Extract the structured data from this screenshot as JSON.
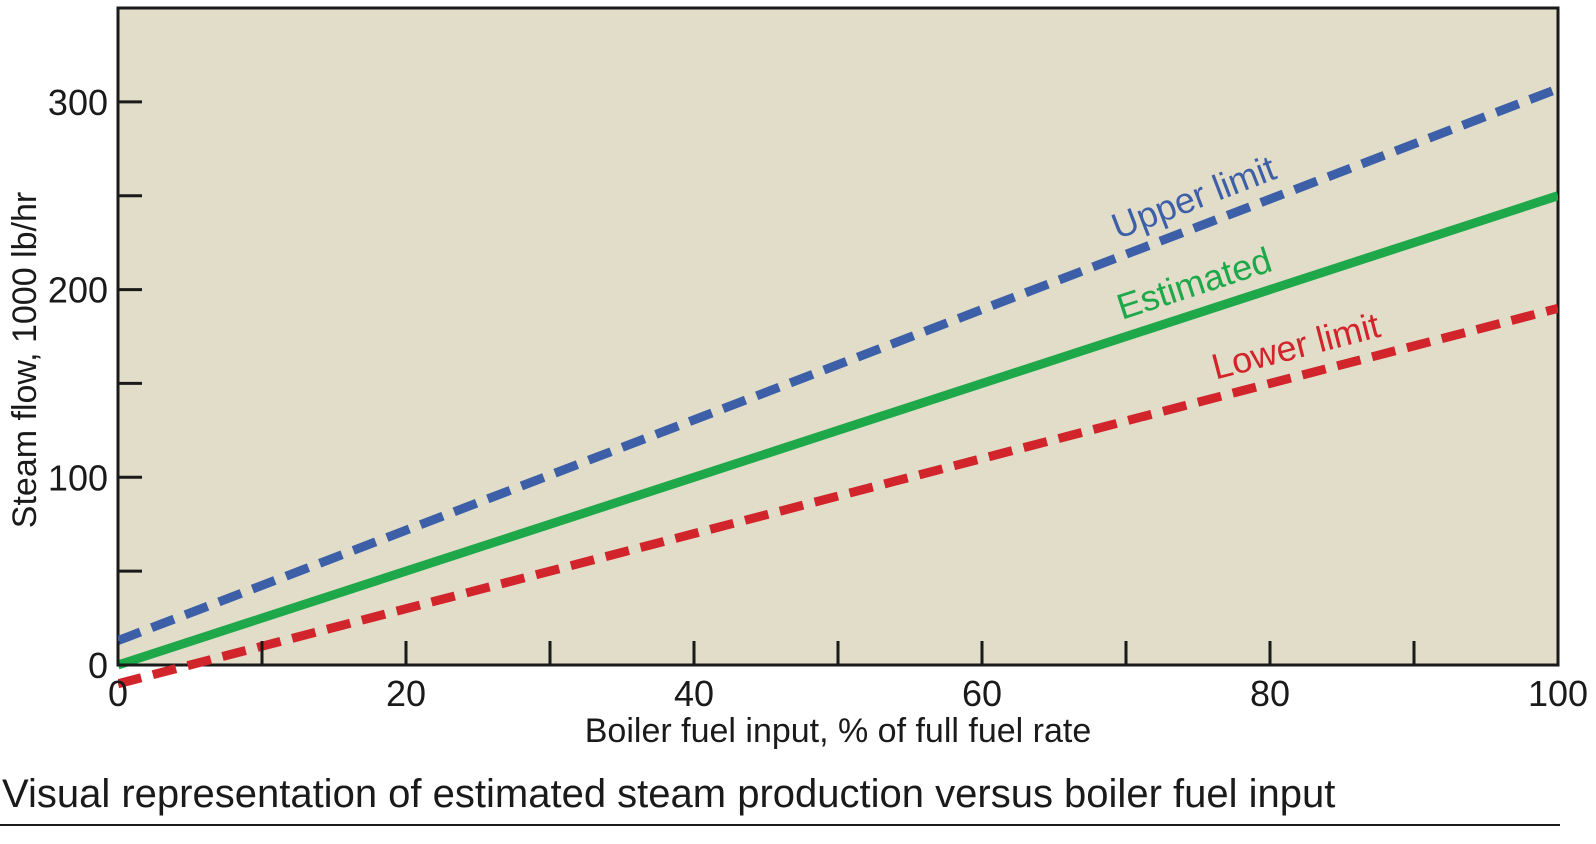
{
  "chart_data": {
    "type": "line",
    "xlabel": "Boiler fuel input, % of full fuel rate",
    "ylabel": "Steam flow, 1000 lb/hr",
    "xlim": [
      0,
      100
    ],
    "ylim": [
      0,
      350
    ],
    "x_ticks_major": [
      0,
      20,
      40,
      60,
      80,
      100
    ],
    "x_ticks_minor": [
      10,
      30,
      50,
      70,
      90
    ],
    "y_ticks_major": [
      0,
      100,
      200,
      300
    ],
    "y_ticks_minor": [
      50,
      150,
      250
    ],
    "grid": false,
    "background_color": "#e1ddc9",
    "x": [
      0,
      100
    ],
    "series": [
      {
        "name": "Upper limit",
        "values": [
          13,
          307
        ],
        "color": "#3c5fa8",
        "style": "dashed"
      },
      {
        "name": "Estimated",
        "values": [
          0,
          250
        ],
        "color": "#1ea84a",
        "style": "solid"
      },
      {
        "name": "Lower limit",
        "values": [
          -10,
          190
        ],
        "color": "#d1242b",
        "style": "dashed"
      }
    ]
  },
  "caption": "Visual representation of estimated steam production versus boiler fuel input"
}
